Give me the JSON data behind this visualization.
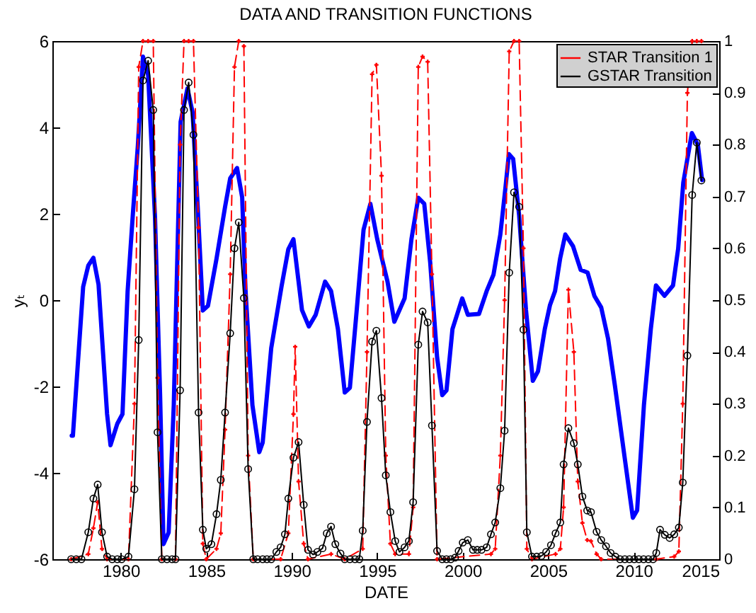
{
  "chart_data": {
    "type": "line",
    "title": "DATA AND TRANSITION FUNCTIONS",
    "xlabel": "DATE",
    "ylabel": "yₜ",
    "xlim": [
      1976,
      2015
    ],
    "xticks": [
      1980,
      1985,
      1990,
      1995,
      2000,
      2005,
      2010,
      2015
    ],
    "ylim": [
      -6,
      6
    ],
    "yticks": [
      -6,
      -4,
      -2,
      0,
      2,
      4,
      6
    ],
    "y2lim": [
      0,
      1
    ],
    "y2ticks": [
      0,
      0.1,
      0.2,
      0.3,
      0.4,
      0.5,
      0.6,
      0.7,
      0.8,
      0.9,
      1
    ],
    "grid": false,
    "legend": "top right",
    "series": [
      {
        "color": "#0000ff",
        "marker": "none",
        "line_style": "solid",
        "x": [
          1977.13,
          1977.2,
          1977.8,
          1978.1,
          1978.4,
          1978.7,
          1979.2,
          1979.4,
          1979.8,
          1980.1,
          1980.4,
          1980.7,
          1981.0,
          1981.3,
          1981.6,
          1982.0,
          1982.3,
          1982.5,
          1982.8,
          1983.1,
          1983.5,
          1983.9,
          1984.2,
          1984.5,
          1984.8,
          1985.1,
          1985.6,
          1986.1,
          1986.4,
          1986.8,
          1987.1,
          1987.3,
          1987.7,
          1988.1,
          1988.3,
          1988.8,
          1989.4,
          1989.8,
          1990.1,
          1990.6,
          1991.0,
          1991.4,
          1991.95,
          1992.3,
          1992.7,
          1993.1,
          1993.4,
          1993.8,
          1994.2,
          1994.6,
          1995.0,
          1995.6,
          1996.0,
          1996.6,
          1997.0,
          1997.4,
          1997.75,
          1998.1,
          1998.5,
          1998.8,
          1999.05,
          1999.4,
          1999.97,
          2000.3,
          2000.95,
          2001.4,
          2001.8,
          2002.2,
          2002.5,
          2002.7,
          2002.95,
          2003.3,
          2003.7,
          2004.1,
          2004.4,
          2004.8,
          2005.1,
          2005.4,
          2005.7,
          2006.0,
          2006.45,
          2006.9,
          2007.3,
          2007.7,
          2008.1,
          2008.5,
          2008.9,
          2009.5,
          2009.95,
          2010.2,
          2010.6,
          2011.0,
          2011.3,
          2011.8,
          2012.3,
          2012.6,
          2012.9,
          2013.4,
          2013.75,
          2014.0
        ],
        "values": [
          -3.14,
          -3.14,
          0.31,
          0.8,
          0.98,
          0.36,
          -2.64,
          -3.36,
          -2.86,
          -2.64,
          0.2,
          1.95,
          3.58,
          5.64,
          5.22,
          1.95,
          -2.2,
          -5.65,
          -5.38,
          -2.43,
          4.13,
          4.9,
          4.35,
          2.16,
          -0.24,
          -0.13,
          0.96,
          2.16,
          2.82,
          3.06,
          2.38,
          0.2,
          -2.43,
          -3.52,
          -3.3,
          -1.11,
          0.31,
          1.18,
          1.41,
          -0.23,
          -0.61,
          -0.34,
          0.43,
          0.21,
          -0.67,
          -2.14,
          -2.03,
          -0.23,
          1.63,
          2.23,
          1.41,
          0.43,
          -0.5,
          0.04,
          1.41,
          2.37,
          2.23,
          0.86,
          -1.32,
          -2.2,
          -2.09,
          -0.67,
          0.04,
          -0.34,
          -0.32,
          0.21,
          0.59,
          1.52,
          2.61,
          3.38,
          3.27,
          1.96,
          -0.23,
          -1.87,
          -1.65,
          -0.67,
          -0.12,
          0.21,
          0.97,
          1.52,
          1.25,
          0.7,
          0.64,
          0.1,
          -0.17,
          -0.89,
          -1.98,
          -3.73,
          -5.04,
          -4.87,
          -2.42,
          -0.67,
          0.34,
          0.1,
          0.34,
          1.19,
          2.72,
          3.87,
          3.6,
          2.78
        ]
      },
      {
        "name": "STAR Transition 1",
        "color": "#ff0000",
        "axis": "y2",
        "marker": "cross",
        "line_style": "dashed",
        "x": [
          1977.1,
          1978.1,
          1978.4,
          1978.65,
          1978.9,
          1979.2,
          1980.45,
          1980.8,
          1981.05,
          1981.3,
          1981.6,
          1981.9,
          1982.15,
          1982.4,
          1983.2,
          1983.47,
          1983.7,
          1983.97,
          1984.25,
          1984.55,
          1984.8,
          1985.0,
          1985.6,
          1985.85,
          1986.1,
          1986.4,
          1986.65,
          1986.9,
          1987.2,
          1987.45,
          1987.75,
          1989.35,
          1989.8,
          1990.1,
          1990.2,
          1990.4,
          1990.7,
          1990.95,
          1992.3,
          1993.1,
          1994.15,
          1994.4,
          1994.7,
          1994.95,
          1995.25,
          1995.5,
          1995.77,
          1996.05,
          1996.85,
          1997.1,
          1997.4,
          1997.65,
          1997.95,
          1998.2,
          1998.5,
          2001.65,
          2001.9,
          2002.2,
          2002.45,
          2002.72,
          2003.0,
          2003.3,
          2003.55,
          2003.75,
          2004.05,
          2005.43,
          2005.71,
          2005.9,
          2006.18,
          2006.5,
          2006.73,
          2007.0,
          2007.28,
          2007.5,
          2007.83,
          2008.1,
          2011.32,
          2012.37,
          2012.64,
          2012.87,
          2013.14,
          2013.42,
          2013.69,
          2013.96
        ],
        "values": [
          0,
          0.01,
          0.06,
          0.11,
          0.02,
          0,
          0,
          0.3,
          0.95,
          1,
          1,
          1,
          0.35,
          0,
          0,
          0.8,
          1,
          1,
          1,
          0.64,
          0.03,
          0,
          0.02,
          0.05,
          0.25,
          0.55,
          0.95,
          1,
          0.99,
          0.2,
          0,
          0,
          0.05,
          0.28,
          0.41,
          0.15,
          0.03,
          0,
          0.01,
          0,
          0.02,
          0.4,
          0.936,
          0.954,
          0.74,
          0.2,
          0.03,
          0.01,
          0.01,
          0.1,
          0.95,
          0.97,
          0.96,
          0.55,
          0,
          0.01,
          0.02,
          0.2,
          0.5,
          0.98,
          1,
          1,
          0.6,
          0.02,
          0,
          0.01,
          0.02,
          0.1,
          0.52,
          0.4,
          0.15,
          0.07,
          0.037,
          0.035,
          0.01,
          0,
          0,
          0.005,
          0.015,
          0.3,
          0.9,
          1,
          1,
          1
        ]
      },
      {
        "name": "GSTAR Transition",
        "color": "#000000",
        "axis": "y2",
        "marker": "circle",
        "line_style": "solid",
        "x": [
          1977.1,
          1977.4,
          1977.7,
          1978.1,
          1978.4,
          1978.65,
          1978.9,
          1979.2,
          1979.5,
          1979.8,
          1980.05,
          1980.45,
          1980.8,
          1981.05,
          1981.3,
          1981.6,
          1981.9,
          1982.15,
          1982.4,
          1982.7,
          1983.0,
          1983.2,
          1983.47,
          1983.7,
          1983.97,
          1984.25,
          1984.55,
          1984.8,
          1985.0,
          1985.3,
          1985.6,
          1985.85,
          1986.1,
          1986.4,
          1986.65,
          1986.9,
          1987.2,
          1987.45,
          1987.75,
          1988.0,
          1988.3,
          1988.55,
          1988.8,
          1989.1,
          1989.35,
          1989.6,
          1989.8,
          1990.1,
          1990.4,
          1990.7,
          1990.95,
          1991.25,
          1991.5,
          1991.8,
          1992.05,
          1992.3,
          1992.55,
          1992.85,
          1993.1,
          1993.4,
          1993.7,
          1993.95,
          1994.15,
          1994.4,
          1994.7,
          1994.95,
          1995.25,
          1995.5,
          1995.77,
          1996.05,
          1996.3,
          1996.6,
          1996.85,
          1997.1,
          1997.4,
          1997.65,
          1997.95,
          1998.2,
          1998.5,
          1998.8,
          1999.05,
          1999.3,
          1999.55,
          1999.76,
          2000.0,
          2000.3,
          2000.6,
          2000.85,
          2001.1,
          2001.4,
          2001.65,
          2001.9,
          2002.2,
          2002.45,
          2002.72,
          2003.0,
          2003.3,
          2003.55,
          2003.75,
          2004.05,
          2004.33,
          2004.6,
          2004.88,
          2005.16,
          2005.43,
          2005.71,
          2005.9,
          2006.18,
          2006.5,
          2006.73,
          2007.0,
          2007.28,
          2007.5,
          2007.83,
          2008.1,
          2008.38,
          2008.65,
          2008.93,
          2009.2,
          2009.48,
          2009.75,
          2010.03,
          2010.3,
          2010.58,
          2010.86,
          2011.13,
          2011.32,
          2011.54,
          2011.82,
          2012.1,
          2012.37,
          2012.64,
          2012.87,
          2013.14,
          2013.42,
          2013.69,
          2013.96
        ],
        "values": [
          0,
          0,
          0,
          0.052,
          0.117,
          0.144,
          0.052,
          0.005,
          0,
          0,
          0,
          0.005,
          0.135,
          0.423,
          0.924,
          0.962,
          0.867,
          0.245,
          0,
          0,
          0,
          0,
          0.326,
          0.867,
          0.92,
          0.819,
          0.283,
          0.057,
          0.02,
          0.029,
          0.087,
          0.153,
          0.283,
          0.436,
          0.6,
          0.65,
          0.504,
          0.174,
          0,
          0,
          0,
          0,
          0,
          0.014,
          0.023,
          0.048,
          0.117,
          0.196,
          0.226,
          0.105,
          0.018,
          0.009,
          0.014,
          0.021,
          0.05,
          0.063,
          0.029,
          0.011,
          0,
          0,
          0,
          0,
          0.055,
          0.265,
          0.42,
          0.441,
          0.311,
          0.162,
          0.091,
          0.035,
          0.014,
          0.023,
          0.035,
          0.11,
          0.414,
          0.478,
          0.457,
          0.258,
          0.016,
          0,
          0,
          0,
          0.003,
          0.016,
          0.032,
          0.037,
          0.018,
          0.018,
          0.018,
          0.023,
          0.048,
          0.071,
          0.137,
          0.248,
          0.553,
          0.708,
          0.68,
          0.443,
          0.052,
          0.005,
          0.005,
          0.006,
          0.014,
          0.027,
          0.05,
          0.071,
          0.183,
          0.253,
          0.224,
          0.183,
          0.121,
          0.094,
          0.091,
          0.053,
          0.037,
          0.025,
          0.012,
          0.005,
          0,
          0,
          0,
          0,
          0,
          0,
          0,
          0,
          0.012,
          0.057,
          0.047,
          0.041,
          0.048,
          0.061,
          0.148,
          0.393,
          0.703,
          0.804,
          0.731
        ]
      }
    ]
  }
}
